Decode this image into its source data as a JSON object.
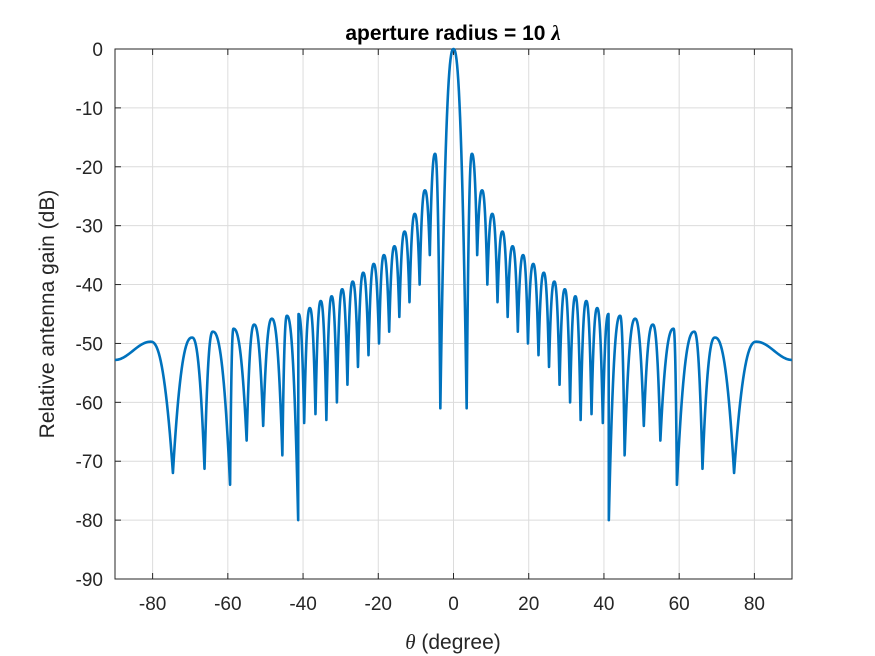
{
  "chart_data": {
    "type": "line",
    "title": "aperture radius = 10",
    "title_symbol": "λ",
    "xlabel_symbol": "θ",
    "xlabel": " (degree)",
    "ylabel": "Relative antenna gain (dB)",
    "xlim": [
      -90,
      90
    ],
    "ylim": [
      -90,
      0
    ],
    "xticks": [
      -80,
      -60,
      -40,
      -20,
      0,
      20,
      40,
      60,
      80
    ],
    "yticks": [
      0,
      -10,
      -20,
      -30,
      -40,
      -50,
      -60,
      -70,
      -80,
      -90
    ],
    "grid": true,
    "series": [
      {
        "color": "#0072BD",
        "peaks": [
          {
            "x": 0,
            "y": 0
          },
          {
            "x": 4.9,
            "y": -17.8
          },
          {
            "x": 7.6,
            "y": -24
          },
          {
            "x": 10.3,
            "y": -28
          },
          {
            "x": 13.0,
            "y": -31
          },
          {
            "x": 15.7,
            "y": -33.5
          },
          {
            "x": 18.5,
            "y": -35
          },
          {
            "x": 21.2,
            "y": -36.5
          },
          {
            "x": 24.0,
            "y": -38
          },
          {
            "x": 26.8,
            "y": -39.5
          },
          {
            "x": 29.6,
            "y": -40.8
          },
          {
            "x": 32.4,
            "y": -42
          },
          {
            "x": 35.3,
            "y": -42.8
          },
          {
            "x": 38.2,
            "y": -44
          },
          {
            "x": 41.2,
            "y": -45
          },
          {
            "x": 44.3,
            "y": -45.3
          },
          {
            "x": 48.3,
            "y": -45.8
          },
          {
            "x": 53.0,
            "y": -46.8
          },
          {
            "x": 58.5,
            "y": -47.5
          },
          {
            "x": 64.0,
            "y": -48
          },
          {
            "x": 69.5,
            "y": -49
          },
          {
            "x": 80.5,
            "y": -49.7
          }
        ],
        "nulls": [
          {
            "x": 3.5,
            "y": -61
          },
          {
            "x": 6.3,
            "y": -35
          },
          {
            "x": 9.0,
            "y": -40
          },
          {
            "x": 11.7,
            "y": -43
          },
          {
            "x": 14.4,
            "y": -45.5
          },
          {
            "x": 17.1,
            "y": -48
          },
          {
            "x": 19.8,
            "y": -50
          },
          {
            "x": 22.6,
            "y": -52
          },
          {
            "x": 25.4,
            "y": -54
          },
          {
            "x": 28.2,
            "y": -57
          },
          {
            "x": 31.0,
            "y": -60
          },
          {
            "x": 33.8,
            "y": -63
          },
          {
            "x": 36.7,
            "y": -62
          },
          {
            "x": 39.7,
            "y": -63.5
          },
          {
            "x": 41.3,
            "y": -80
          },
          {
            "x": 45.5,
            "y": -69
          },
          {
            "x": 50.6,
            "y": -64
          },
          {
            "x": 55.0,
            "y": -66.5
          },
          {
            "x": 59.4,
            "y": -74
          },
          {
            "x": 66.2,
            "y": -71.3
          },
          {
            "x": 74.6,
            "y": -72
          }
        ],
        "edge": {
          "x": 90,
          "y": -52.8
        }
      }
    ]
  }
}
